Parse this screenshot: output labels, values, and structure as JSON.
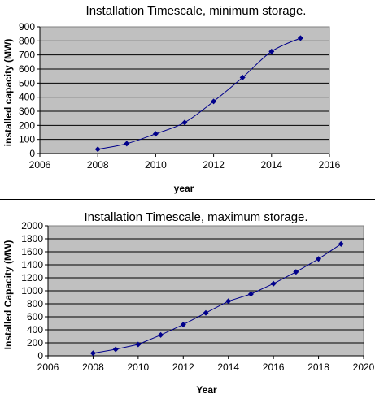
{
  "chart_data": [
    {
      "type": "scatter",
      "title": "Installation Timescale, minimum storage.",
      "xlabel": "year",
      "ylabel": "installed capacity (MW)",
      "xlim": [
        2006,
        2016
      ],
      "ylim": [
        0,
        900
      ],
      "xticks": [
        2006,
        2008,
        2010,
        2012,
        2014,
        2016
      ],
      "yticks": [
        0,
        100,
        200,
        300,
        400,
        500,
        600,
        700,
        800,
        900
      ],
      "grid": true,
      "legend": "none",
      "series": [
        {
          "x": [
            2008,
            2009,
            2010,
            2011,
            2012,
            2013,
            2014,
            2015
          ],
          "y": [
            30,
            70,
            140,
            220,
            370,
            540,
            725,
            820
          ],
          "color": "#00008b",
          "smooth": true
        }
      ],
      "plot_bg": "#c0c0c0"
    },
    {
      "type": "scatter",
      "title": "Installation Timescale, maximum storage.",
      "xlabel": "Year",
      "ylabel": "Installed Capacity (MW)",
      "xlim": [
        2006,
        2020
      ],
      "ylim": [
        0,
        2000
      ],
      "xticks": [
        2006,
        2008,
        2010,
        2012,
        2014,
        2016,
        2018,
        2020
      ],
      "yticks": [
        0,
        200,
        400,
        600,
        800,
        1000,
        1200,
        1400,
        1600,
        1800,
        2000
      ],
      "grid": true,
      "legend": "none",
      "series": [
        {
          "x": [
            2008,
            2009,
            2010,
            2011,
            2012,
            2013,
            2014,
            2015,
            2016,
            2017,
            2018,
            2019
          ],
          "y": [
            40,
            100,
            175,
            320,
            480,
            660,
            840,
            950,
            1110,
            1290,
            1490,
            1720
          ],
          "color": "#00008b",
          "smooth": false
        }
      ],
      "plot_bg": "#c0c0c0"
    }
  ]
}
